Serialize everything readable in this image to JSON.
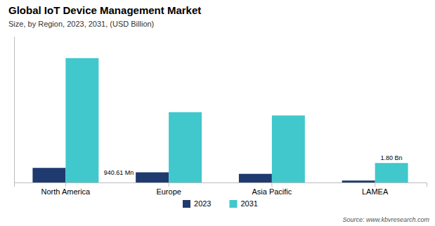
{
  "chart_data": {
    "type": "bar",
    "title": "Global IoT Device Management Market",
    "subtitle": "Size, by Region, 2023, 2031, (USD Billion)",
    "source": "Source: www.kbvresearch.com",
    "categories": [
      "North America",
      "Europe",
      "Asia Pacific",
      "LAMEA"
    ],
    "series": [
      {
        "name": "2023",
        "color": "#1e3a6e",
        "values": [
          1.35,
          0.94061,
          0.8,
          0.18
        ]
      },
      {
        "name": "2031",
        "color": "#40c8cc",
        "values": [
          11.5,
          6.5,
          6.2,
          1.8
        ]
      }
    ],
    "annotations": [
      {
        "text": "940.61 Mn",
        "category": "Europe",
        "series": "2023"
      },
      {
        "text": "1.80 Bn",
        "category": "LAMEA",
        "series": "2031"
      }
    ],
    "ylim": [
      0,
      13.5
    ],
    "tick_labels": "x",
    "grid": false,
    "legend": "bottom"
  }
}
